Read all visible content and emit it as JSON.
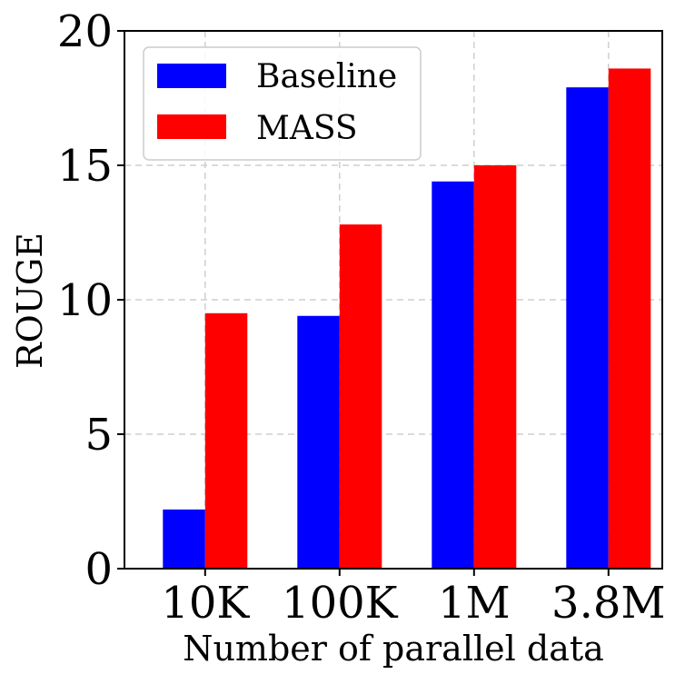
{
  "chart_data": {
    "type": "bar",
    "title": "",
    "xlabel": "Number of parallel data",
    "ylabel": "ROUGE",
    "categories": [
      "10K",
      "100K",
      "1M",
      "3.8M"
    ],
    "series": [
      {
        "name": "Baseline",
        "color": "#0000ff",
        "values": [
          2.2,
          9.4,
          14.4,
          17.9
        ]
      },
      {
        "name": "MASS",
        "color": "#ff0000",
        "values": [
          9.5,
          12.8,
          15.0,
          18.6
        ]
      }
    ],
    "ylim": [
      0,
      20
    ],
    "yticks": [
      "0",
      "5",
      "10",
      "15",
      "20"
    ],
    "grid": true,
    "legend_position": "top-left"
  }
}
